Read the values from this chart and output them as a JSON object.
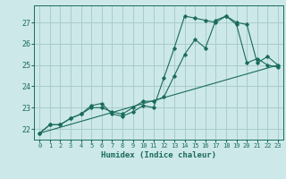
{
  "xlabel": "Humidex (Indice chaleur)",
  "ylabel": "",
  "bg_color": "#cce8e8",
  "grid_color": "#aacccc",
  "line_color": "#1a6b5a",
  "xlim": [
    -0.5,
    23.5
  ],
  "ylim": [
    21.5,
    27.8
  ],
  "xticks": [
    0,
    1,
    2,
    3,
    4,
    5,
    6,
    7,
    8,
    9,
    10,
    11,
    12,
    13,
    14,
    15,
    16,
    17,
    18,
    19,
    20,
    21,
    22,
    23
  ],
  "yticks": [
    22,
    23,
    24,
    25,
    26,
    27
  ],
  "line1_x": [
    0,
    1,
    2,
    3,
    4,
    5,
    6,
    7,
    8,
    9,
    10,
    11,
    12,
    13,
    14,
    15,
    16,
    17,
    18,
    19,
    20,
    21,
    22,
    23
  ],
  "line1_y": [
    21.8,
    22.2,
    22.2,
    22.5,
    22.7,
    23.0,
    23.0,
    22.8,
    22.7,
    23.0,
    23.3,
    23.3,
    23.5,
    24.5,
    25.5,
    26.2,
    25.8,
    27.1,
    27.3,
    26.9,
    25.1,
    25.3,
    25.0,
    24.9
  ],
  "line2_x": [
    0,
    1,
    2,
    3,
    4,
    5,
    6,
    7,
    8,
    9,
    10,
    11,
    12,
    13,
    14,
    15,
    16,
    17,
    18,
    19,
    20,
    21,
    22,
    23
  ],
  "line2_y": [
    21.8,
    22.2,
    22.2,
    22.5,
    22.7,
    23.1,
    23.2,
    22.7,
    22.6,
    22.8,
    23.1,
    23.0,
    24.4,
    25.8,
    27.3,
    27.2,
    27.1,
    27.0,
    27.3,
    27.0,
    26.9,
    25.1,
    25.4,
    25.0
  ],
  "line3_x": [
    0,
    23
  ],
  "line3_y": [
    21.8,
    25.0
  ]
}
